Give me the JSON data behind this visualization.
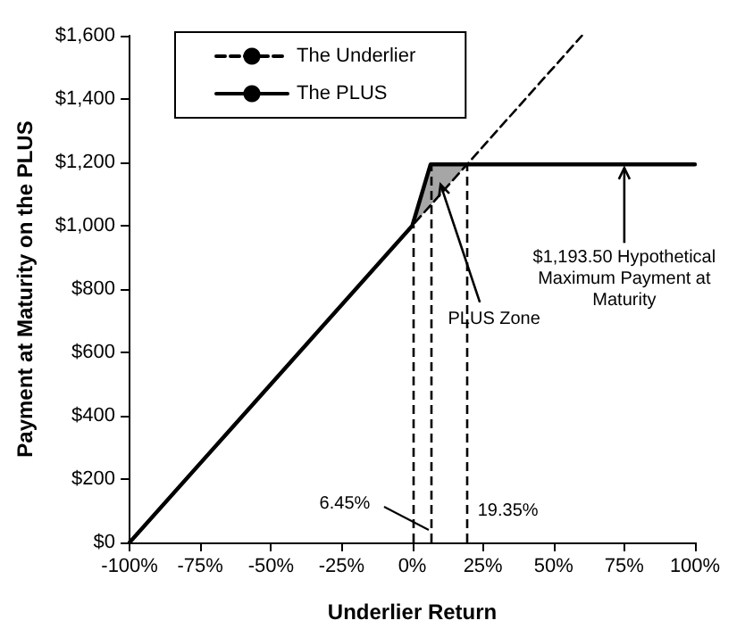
{
  "chart_data": {
    "type": "line",
    "xlabel": "Underlier Return",
    "ylabel": "Payment at Maturity on the PLUS",
    "series": [
      {
        "name": "The Underlier",
        "color": "#000000",
        "line_style": "dashed",
        "x": [
          -100,
          60
        ],
        "values": [
          0,
          1600
        ]
      },
      {
        "name": "The PLUS",
        "color": "#000000",
        "line_style": "solid",
        "x": [
          -100,
          0,
          6.45,
          19.35,
          100
        ],
        "values": [
          0,
          1000,
          1193.5,
          1193.5,
          1193.5
        ],
        "lower": [
          null,
          1000,
          1065,
          1193.5,
          null
        ],
        "upper": [
          null,
          1000,
          1193.5,
          1193.5,
          null
        ]
      }
    ],
    "xlim": [
      -100,
      100
    ],
    "xticks": [
      {
        "value": -100,
        "label": "-100%"
      },
      {
        "value": -75,
        "label": "-75%"
      },
      {
        "value": -50,
        "label": "-50%"
      },
      {
        "value": -25,
        "label": "-25%"
      },
      {
        "value": 0,
        "label": "0%"
      },
      {
        "value": 25,
        "label": "25%"
      },
      {
        "value": 50,
        "label": "50%"
      },
      {
        "value": 75,
        "label": "75%"
      },
      {
        "value": 100,
        "label": "100%"
      }
    ],
    "ylim": [
      0,
      1600
    ],
    "yticks": [
      {
        "value": 0,
        "label": "$0"
      },
      {
        "value": 200,
        "label": "$200"
      },
      {
        "value": 400,
        "label": "$400"
      },
      {
        "value": 600,
        "label": "$600"
      },
      {
        "value": 800,
        "label": "$800"
      },
      {
        "value": 1000,
        "label": "$1,000"
      },
      {
        "value": 1200,
        "label": "$1,200"
      },
      {
        "value": 1400,
        "label": "$1,400"
      },
      {
        "value": 1600,
        "label": "$1,600"
      }
    ],
    "ref_lines": [
      {
        "axis": "x",
        "value": 0,
        "label": null,
        "line_style": "dashed"
      },
      {
        "axis": "x",
        "value": 6.45,
        "label": "6.45%",
        "line_style": "dashed"
      },
      {
        "axis": "x",
        "value": 19.35,
        "label": "19.35%",
        "line_style": "dashed"
      }
    ],
    "annotations": [
      {
        "text": "PLUS Zone",
        "x": 10,
        "y": 1130
      },
      {
        "text": "$1,193.50 Hypothetical Maximum Payment at Maturity",
        "x": 75,
        "y": 1193.5
      }
    ],
    "grid": false,
    "legend": "top left",
    "marker": "none"
  }
}
